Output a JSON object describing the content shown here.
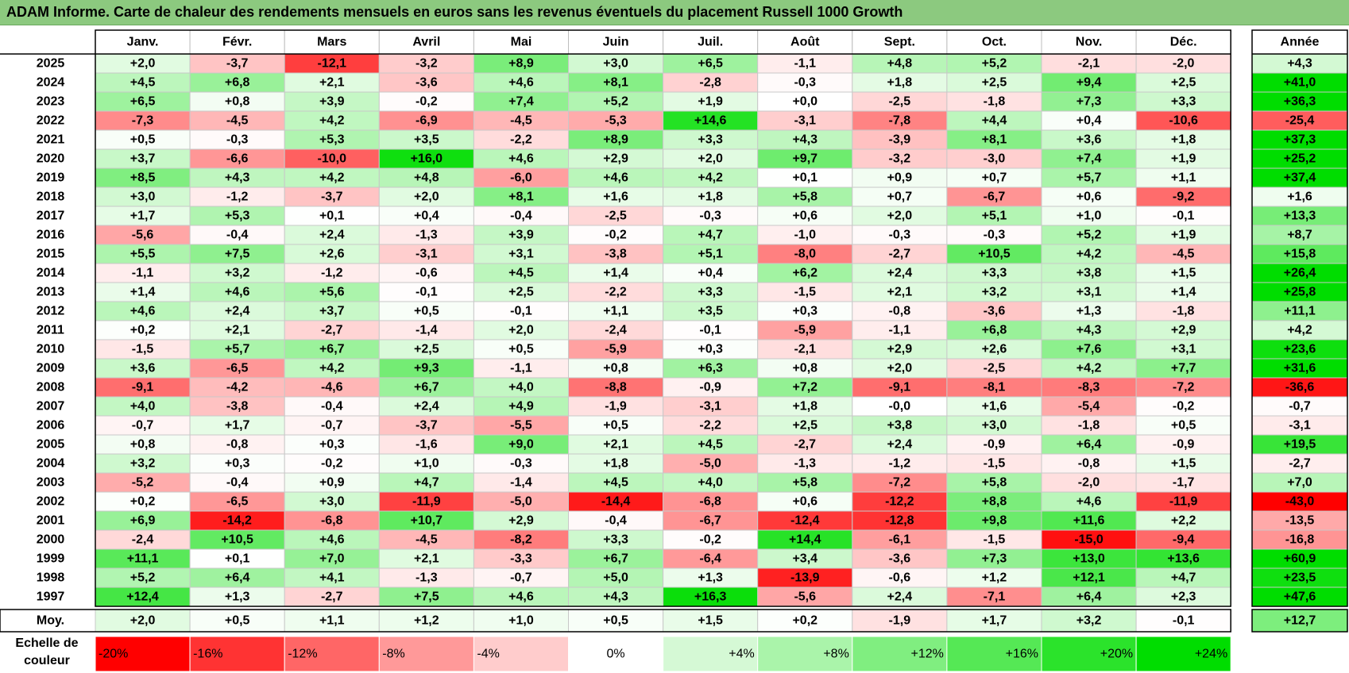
{
  "title": "ADAM Informe. Carte de chaleur des rendements mensuels en euros sans les revenus éventuels du placement Russell 1000 Growth",
  "chart_data": {
    "type": "heatmap",
    "columns": [
      "Janv.",
      "Févr.",
      "Mars",
      "Avril",
      "Mai",
      "Juin",
      "Juil.",
      "Août",
      "Sept.",
      "Oct.",
      "Nov.",
      "Déc."
    ],
    "year_column": "Année",
    "rows": [
      {
        "year": "2025",
        "values": [
          "+2,0",
          "-3,7",
          "-12,1",
          "-3,2",
          "+8,9",
          "+3,0",
          "+6,5",
          "-1,1",
          "+4,8",
          "+5,2",
          "-2,1",
          "-2,0"
        ],
        "annual": "+4,3"
      },
      {
        "year": "2024",
        "values": [
          "+4,5",
          "+6,8",
          "+2,1",
          "-3,6",
          "+4,6",
          "+8,1",
          "-2,8",
          "-0,3",
          "+1,8",
          "+2,5",
          "+9,4",
          "+2,5"
        ],
        "annual": "+41,0"
      },
      {
        "year": "2023",
        "values": [
          "+6,5",
          "+0,8",
          "+3,9",
          "-0,2",
          "+7,4",
          "+5,2",
          "+1,9",
          "+0,0",
          "-2,5",
          "-1,8",
          "+7,3",
          "+3,3"
        ],
        "annual": "+36,3"
      },
      {
        "year": "2022",
        "values": [
          "-7,3",
          "-4,5",
          "+4,2",
          "-6,9",
          "-4,5",
          "-5,3",
          "+14,6",
          "-3,1",
          "-7,8",
          "+4,4",
          "+0,4",
          "-10,6"
        ],
        "annual": "-25,4"
      },
      {
        "year": "2021",
        "values": [
          "+0,5",
          "-0,3",
          "+5,3",
          "+3,5",
          "-2,2",
          "+8,9",
          "+3,3",
          "+4,3",
          "-3,9",
          "+8,1",
          "+3,6",
          "+1,8"
        ],
        "annual": "+37,3"
      },
      {
        "year": "2020",
        "values": [
          "+3,7",
          "-6,6",
          "-10,0",
          "+16,0",
          "+4,6",
          "+2,9",
          "+2,0",
          "+9,7",
          "-3,2",
          "-3,0",
          "+7,4",
          "+1,9"
        ],
        "annual": "+25,2"
      },
      {
        "year": "2019",
        "values": [
          "+8,5",
          "+4,3",
          "+4,2",
          "+4,8",
          "-6,0",
          "+4,6",
          "+4,2",
          "+0,1",
          "+0,9",
          "+0,7",
          "+5,7",
          "+1,1"
        ],
        "annual": "+37,4"
      },
      {
        "year": "2018",
        "values": [
          "+3,0",
          "-1,2",
          "-3,7",
          "+2,0",
          "+8,1",
          "+1,6",
          "+1,8",
          "+5,8",
          "+0,7",
          "-6,7",
          "+0,6",
          "-9,2"
        ],
        "annual": "+1,6"
      },
      {
        "year": "2017",
        "values": [
          "+1,7",
          "+5,3",
          "+0,1",
          "+0,4",
          "-0,4",
          "-2,5",
          "-0,3",
          "+0,6",
          "+2,0",
          "+5,1",
          "+1,0",
          "-0,1"
        ],
        "annual": "+13,3"
      },
      {
        "year": "2016",
        "values": [
          "-5,6",
          "-0,4",
          "+2,4",
          "-1,3",
          "+3,9",
          "-0,2",
          "+4,7",
          "-1,0",
          "-0,3",
          "-0,3",
          "+5,2",
          "+1,9"
        ],
        "annual": "+8,7"
      },
      {
        "year": "2015",
        "values": [
          "+5,5",
          "+7,5",
          "+2,6",
          "-3,1",
          "+3,1",
          "-3,8",
          "+5,1",
          "-8,0",
          "-2,7",
          "+10,5",
          "+4,2",
          "-4,5"
        ],
        "annual": "+15,8"
      },
      {
        "year": "2014",
        "values": [
          "-1,1",
          "+3,2",
          "-1,2",
          "-0,6",
          "+4,5",
          "+1,4",
          "+0,4",
          "+6,2",
          "+2,4",
          "+3,3",
          "+3,8",
          "+1,5"
        ],
        "annual": "+26,4"
      },
      {
        "year": "2013",
        "values": [
          "+1,4",
          "+4,6",
          "+5,6",
          "-0,1",
          "+2,5",
          "-2,2",
          "+3,3",
          "-1,5",
          "+2,1",
          "+3,2",
          "+3,1",
          "+1,4"
        ],
        "annual": "+25,8"
      },
      {
        "year": "2012",
        "values": [
          "+4,6",
          "+2,4",
          "+3,7",
          "+0,5",
          "-0,1",
          "+1,1",
          "+3,5",
          "+0,3",
          "-0,8",
          "-3,6",
          "+1,3",
          "-1,8"
        ],
        "annual": "+11,1"
      },
      {
        "year": "2011",
        "values": [
          "+0,2",
          "+2,1",
          "-2,7",
          "-1,4",
          "+2,0",
          "-2,4",
          "-0,1",
          "-5,9",
          "-1,1",
          "+6,8",
          "+4,3",
          "+2,9"
        ],
        "annual": "+4,2"
      },
      {
        "year": "2010",
        "values": [
          "-1,5",
          "+5,7",
          "+6,7",
          "+2,5",
          "+0,5",
          "-5,9",
          "+0,3",
          "-2,1",
          "+2,9",
          "+2,6",
          "+7,6",
          "+3,1"
        ],
        "annual": "+23,6"
      },
      {
        "year": "2009",
        "values": [
          "+3,6",
          "-6,5",
          "+4,2",
          "+9,3",
          "-1,1",
          "+0,8",
          "+6,3",
          "+0,8",
          "+2,0",
          "-2,5",
          "+4,2",
          "+7,7"
        ],
        "annual": "+31,6"
      },
      {
        "year": "2008",
        "values": [
          "-9,1",
          "-4,2",
          "-4,6",
          "+6,7",
          "+4,0",
          "-8,8",
          "-0,9",
          "+7,2",
          "-9,1",
          "-8,1",
          "-8,3",
          "-7,2"
        ],
        "annual": "-36,6"
      },
      {
        "year": "2007",
        "values": [
          "+4,0",
          "-3,8",
          "-0,4",
          "+2,4",
          "+4,9",
          "-1,9",
          "-3,1",
          "+1,8",
          "-0,0",
          "+1,6",
          "-5,4",
          "-0,2"
        ],
        "annual": "-0,7"
      },
      {
        "year": "2006",
        "values": [
          "-0,7",
          "+1,7",
          "-0,7",
          "-3,7",
          "-5,5",
          "+0,5",
          "-2,2",
          "+2,5",
          "+3,8",
          "+3,0",
          "-1,8",
          "+0,5"
        ],
        "annual": "-3,1"
      },
      {
        "year": "2005",
        "values": [
          "+0,8",
          "-0,8",
          "+0,3",
          "-1,6",
          "+9,0",
          "+2,1",
          "+4,5",
          "-2,7",
          "+2,4",
          "-0,9",
          "+6,4",
          "-0,9"
        ],
        "annual": "+19,5"
      },
      {
        "year": "2004",
        "values": [
          "+3,2",
          "+0,3",
          "-0,2",
          "+1,0",
          "-0,3",
          "+1,8",
          "-5,0",
          "-1,3",
          "-1,2",
          "-1,5",
          "-0,8",
          "+1,5"
        ],
        "annual": "-2,7"
      },
      {
        "year": "2003",
        "values": [
          "-5,2",
          "-0,4",
          "+0,9",
          "+4,7",
          "-1,4",
          "+4,5",
          "+4,0",
          "+5,8",
          "-7,2",
          "+5,8",
          "-2,0",
          "-1,7"
        ],
        "annual": "+7,0"
      },
      {
        "year": "2002",
        "values": [
          "+0,2",
          "-6,5",
          "+3,0",
          "-11,9",
          "-5,0",
          "-14,4",
          "-6,8",
          "+0,6",
          "-12,2",
          "+8,8",
          "+4,6",
          "-11,9"
        ],
        "annual": "-43,0"
      },
      {
        "year": "2001",
        "values": [
          "+6,9",
          "-14,2",
          "-6,8",
          "+10,7",
          "+2,9",
          "-0,4",
          "-6,7",
          "-12,4",
          "-12,8",
          "+9,8",
          "+11,6",
          "+2,2"
        ],
        "annual": "-13,5"
      },
      {
        "year": "2000",
        "values": [
          "-2,4",
          "+10,5",
          "+4,6",
          "-4,5",
          "-8,2",
          "+3,3",
          "-0,2",
          "+14,4",
          "-6,1",
          "-1,5",
          "-15,0",
          "-9,4"
        ],
        "annual": "-16,8"
      },
      {
        "year": "1999",
        "values": [
          "+11,1",
          "+0,1",
          "+7,0",
          "+2,1",
          "-3,3",
          "+6,7",
          "-6,4",
          "+3,4",
          "-3,6",
          "+7,3",
          "+13,0",
          "+13,6"
        ],
        "annual": "+60,9"
      },
      {
        "year": "1998",
        "values": [
          "+5,2",
          "+6,4",
          "+4,1",
          "-1,3",
          "-0,7",
          "+5,0",
          "+1,3",
          "-13,9",
          "-0,6",
          "+1,2",
          "+12,1",
          "+4,7"
        ],
        "annual": "+23,5"
      },
      {
        "year": "1997",
        "values": [
          "+12,4",
          "+1,3",
          "-2,7",
          "+7,5",
          "+4,6",
          "+4,3",
          "+16,3",
          "-5,6",
          "+2,4",
          "-7,1",
          "+6,4",
          "+2,3"
        ],
        "annual": "+47,6"
      }
    ],
    "average": {
      "label": "Moy.",
      "values": [
        "+2,0",
        "+0,5",
        "+1,1",
        "+1,2",
        "+1,0",
        "+0,5",
        "+1,5",
        "+0,2",
        "-1,9",
        "+1,7",
        "+3,2",
        "-0,1"
      ],
      "annual": "+12,7"
    },
    "color_scale": {
      "label": "Echelle de couleur",
      "stops": [
        "-20%",
        "-16%",
        "-12%",
        "-8%",
        "-4%",
        "0%",
        "+4%",
        "+8%",
        "+12%",
        "+16%",
        "+20%",
        "+24%"
      ],
      "negative_color": "#ff0000",
      "neutral_color": "#ffffff",
      "positive_color": "#00dd00"
    }
  }
}
